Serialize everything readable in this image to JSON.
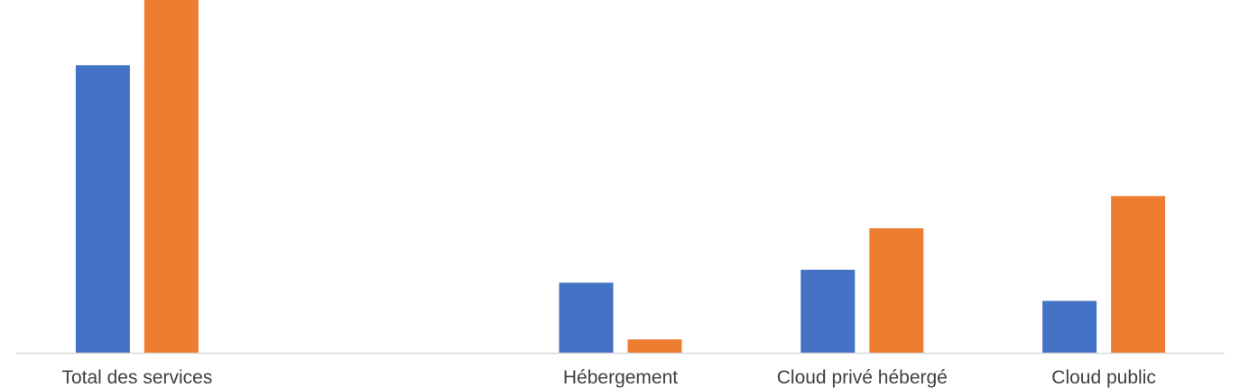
{
  "chart_data": {
    "type": "bar",
    "categories": [
      "Total des services",
      "",
      "Hébergement",
      "Cloud privé hébergé",
      "Cloud public"
    ],
    "series": [
      {
        "color": "#4472C4",
        "values": [
          82,
          null,
          20,
          23.7,
          14.8
        ]
      },
      {
        "color": "#ED7D31",
        "values": [
          101,
          null,
          3.8,
          35.5,
          44.7
        ]
      }
    ],
    "ylim": [
      0,
      100
    ],
    "grid": false,
    "legend": "none",
    "axis_color": "#D9D9D9"
  }
}
